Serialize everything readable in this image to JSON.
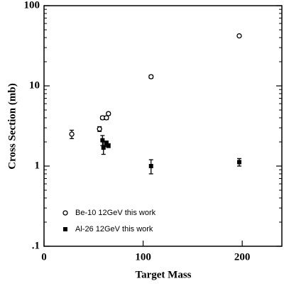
{
  "chart_data": {
    "type": "scatter",
    "xlabel": "Target Mass",
    "ylabel": "Cross Section (mb)",
    "xlim": [
      0,
      240
    ],
    "xticks": [
      0,
      100,
      200
    ],
    "ylim": [
      0.1,
      100
    ],
    "yscale": "log",
    "yticks": [
      {
        "value": 0.1,
        "label": ".1"
      },
      1,
      10,
      100
    ],
    "legend": "lower left",
    "series": [
      {
        "name": "Be-10 12GeV this work",
        "color": "#000000",
        "marker": "circle",
        "x": [
          28,
          56,
          59,
          63,
          65,
          108,
          197
        ],
        "values": [
          2.5,
          2.9,
          4.0,
          4.0,
          4.5,
          13,
          42
        ],
        "errors": [
          0.3,
          0.2,
          0.2,
          0.2,
          0.2,
          0.6,
          1.5
        ]
      },
      {
        "name": "Al-26 12GeV this work",
        "color": "#000000",
        "marker": "square",
        "x": [
          59,
          60,
          63,
          65,
          108,
          197
        ],
        "values": [
          2.1,
          1.7,
          1.9,
          1.8,
          1.0,
          1.12
        ],
        "errors": [
          0.3,
          0.3,
          0.15,
          0.1,
          0.2,
          0.12
        ]
      }
    ]
  }
}
